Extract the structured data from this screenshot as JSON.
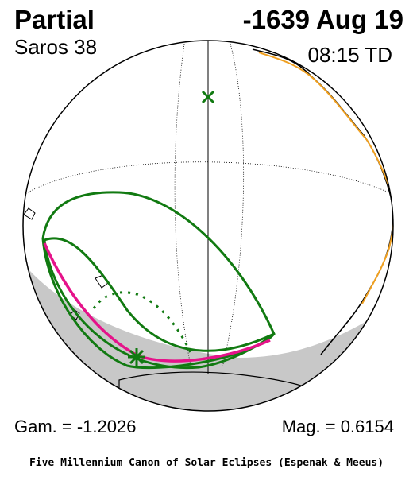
{
  "header": {
    "type_label": "Partial",
    "date_label": "-1639 Aug 19",
    "saros_label": "Saros  38",
    "time_label": "08:15 TD"
  },
  "footer_values": {
    "gamma_label": "Gam. = -1.2026",
    "magnitude_label": "Mag. = 0.6154"
  },
  "credit": "Five Millennium Canon of Solar Eclipses (Espenak & Meeus)",
  "colors": {
    "eclipse_limits": "#117a11",
    "max_eclipse_line": "#e5138a",
    "coastlines_highlight": "#f0a020",
    "night_shade": "#c8c8c8"
  },
  "markers": {
    "greatest_eclipse": "star-icon",
    "subsolar_point": "x-icon"
  }
}
